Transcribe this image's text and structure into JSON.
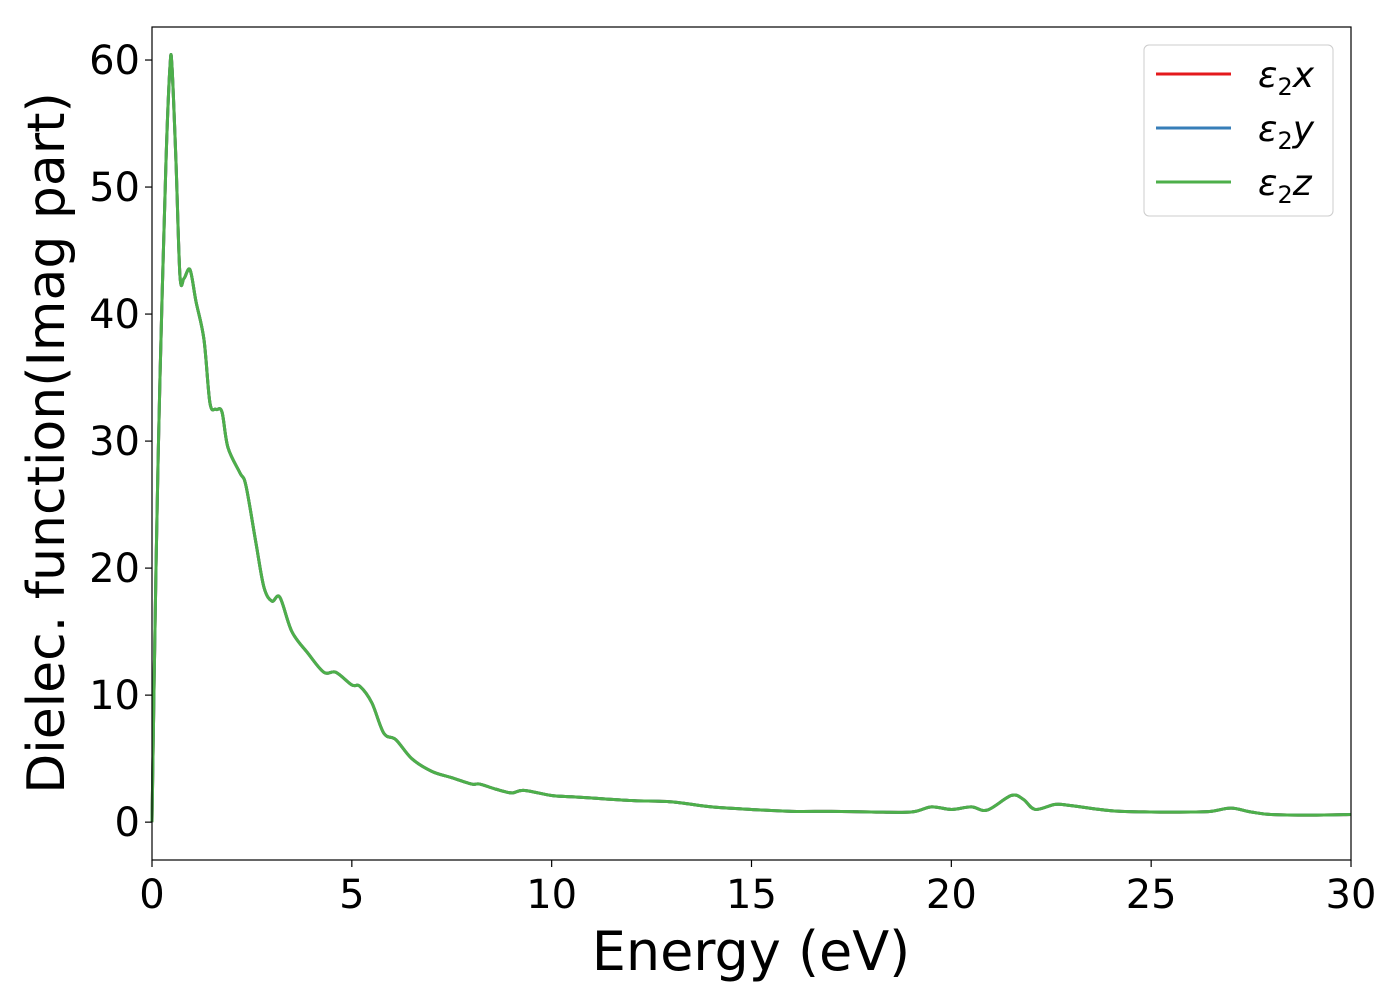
{
  "chart_data": {
    "type": "line",
    "title": "",
    "xlabel": "Energy (eV)",
    "ylabel": "Dielec. function(Imag part)",
    "xlim": [
      0,
      30
    ],
    "ylim": [
      -2.98,
      62.6
    ],
    "xticks": [
      0,
      5,
      10,
      15,
      20,
      25,
      30
    ],
    "xtick_labels": [
      "0",
      "5",
      "10",
      "15",
      "20",
      "25",
      "30"
    ],
    "yticks": [
      0,
      10,
      20,
      30,
      40,
      50,
      60
    ],
    "ytick_labels": [
      "0",
      "10",
      "20",
      "30",
      "40",
      "50",
      "60"
    ],
    "grid": false,
    "legend_position": "top-right",
    "x": [
      0,
      0.1,
      0.2,
      0.35,
      0.45,
      0.5,
      0.6,
      0.7,
      0.8,
      0.95,
      1.1,
      1.3,
      1.45,
      1.6,
      1.75,
      1.9,
      2.2,
      2.35,
      2.6,
      2.8,
      3.0,
      3.2,
      3.5,
      3.9,
      4.3,
      4.6,
      5.0,
      5.2,
      5.5,
      5.8,
      6.1,
      6.5,
      7,
      7.5,
      8,
      8.2,
      8.6,
      9,
      9.3,
      10,
      10.5,
      11,
      12,
      13,
      14,
      15,
      16,
      17,
      18,
      19,
      19.5,
      20,
      20.5,
      20.9,
      21.5,
      21.8,
      22.1,
      22.6,
      23,
      24,
      25,
      26,
      26.5,
      27,
      27.5,
      28,
      29,
      30
    ],
    "series": [
      {
        "name": "ε2x",
        "label_base": "ε",
        "label_sub": "2",
        "label_var": "x",
        "color": "#e41a1c"
      },
      {
        "name": "ε2y",
        "label_base": "ε",
        "label_sub": "2",
        "label_var": "y",
        "color": "#377eb8"
      },
      {
        "name": "ε2z",
        "label_base": "ε",
        "label_sub": "2",
        "label_var": "z",
        "color": "#4daf4a"
      }
    ],
    "values": [
      0,
      20,
      35,
      52,
      59.5,
      59.5,
      52,
      43,
      42.8,
      43.5,
      41,
      38,
      33,
      32.5,
      32.3,
      29.5,
      27.5,
      26.5,
      22,
      18.5,
      17.4,
      17.7,
      15,
      13.3,
      11.8,
      11.8,
      10.8,
      10.7,
      9.4,
      7,
      6.5,
      5,
      4,
      3.5,
      3,
      3,
      2.6,
      2.3,
      2.5,
      2.1,
      2.0,
      1.9,
      1.7,
      1.6,
      1.2,
      1.0,
      0.85,
      0.85,
      0.8,
      0.8,
      1.2,
      1.0,
      1.2,
      0.95,
      2.1,
      1.8,
      1.0,
      1.4,
      1.3,
      0.9,
      0.8,
      0.8,
      0.85,
      1.1,
      0.8,
      0.6,
      0.55,
      0.6
    ],
    "note_values": "all three series share identical values (curves overlap)"
  }
}
